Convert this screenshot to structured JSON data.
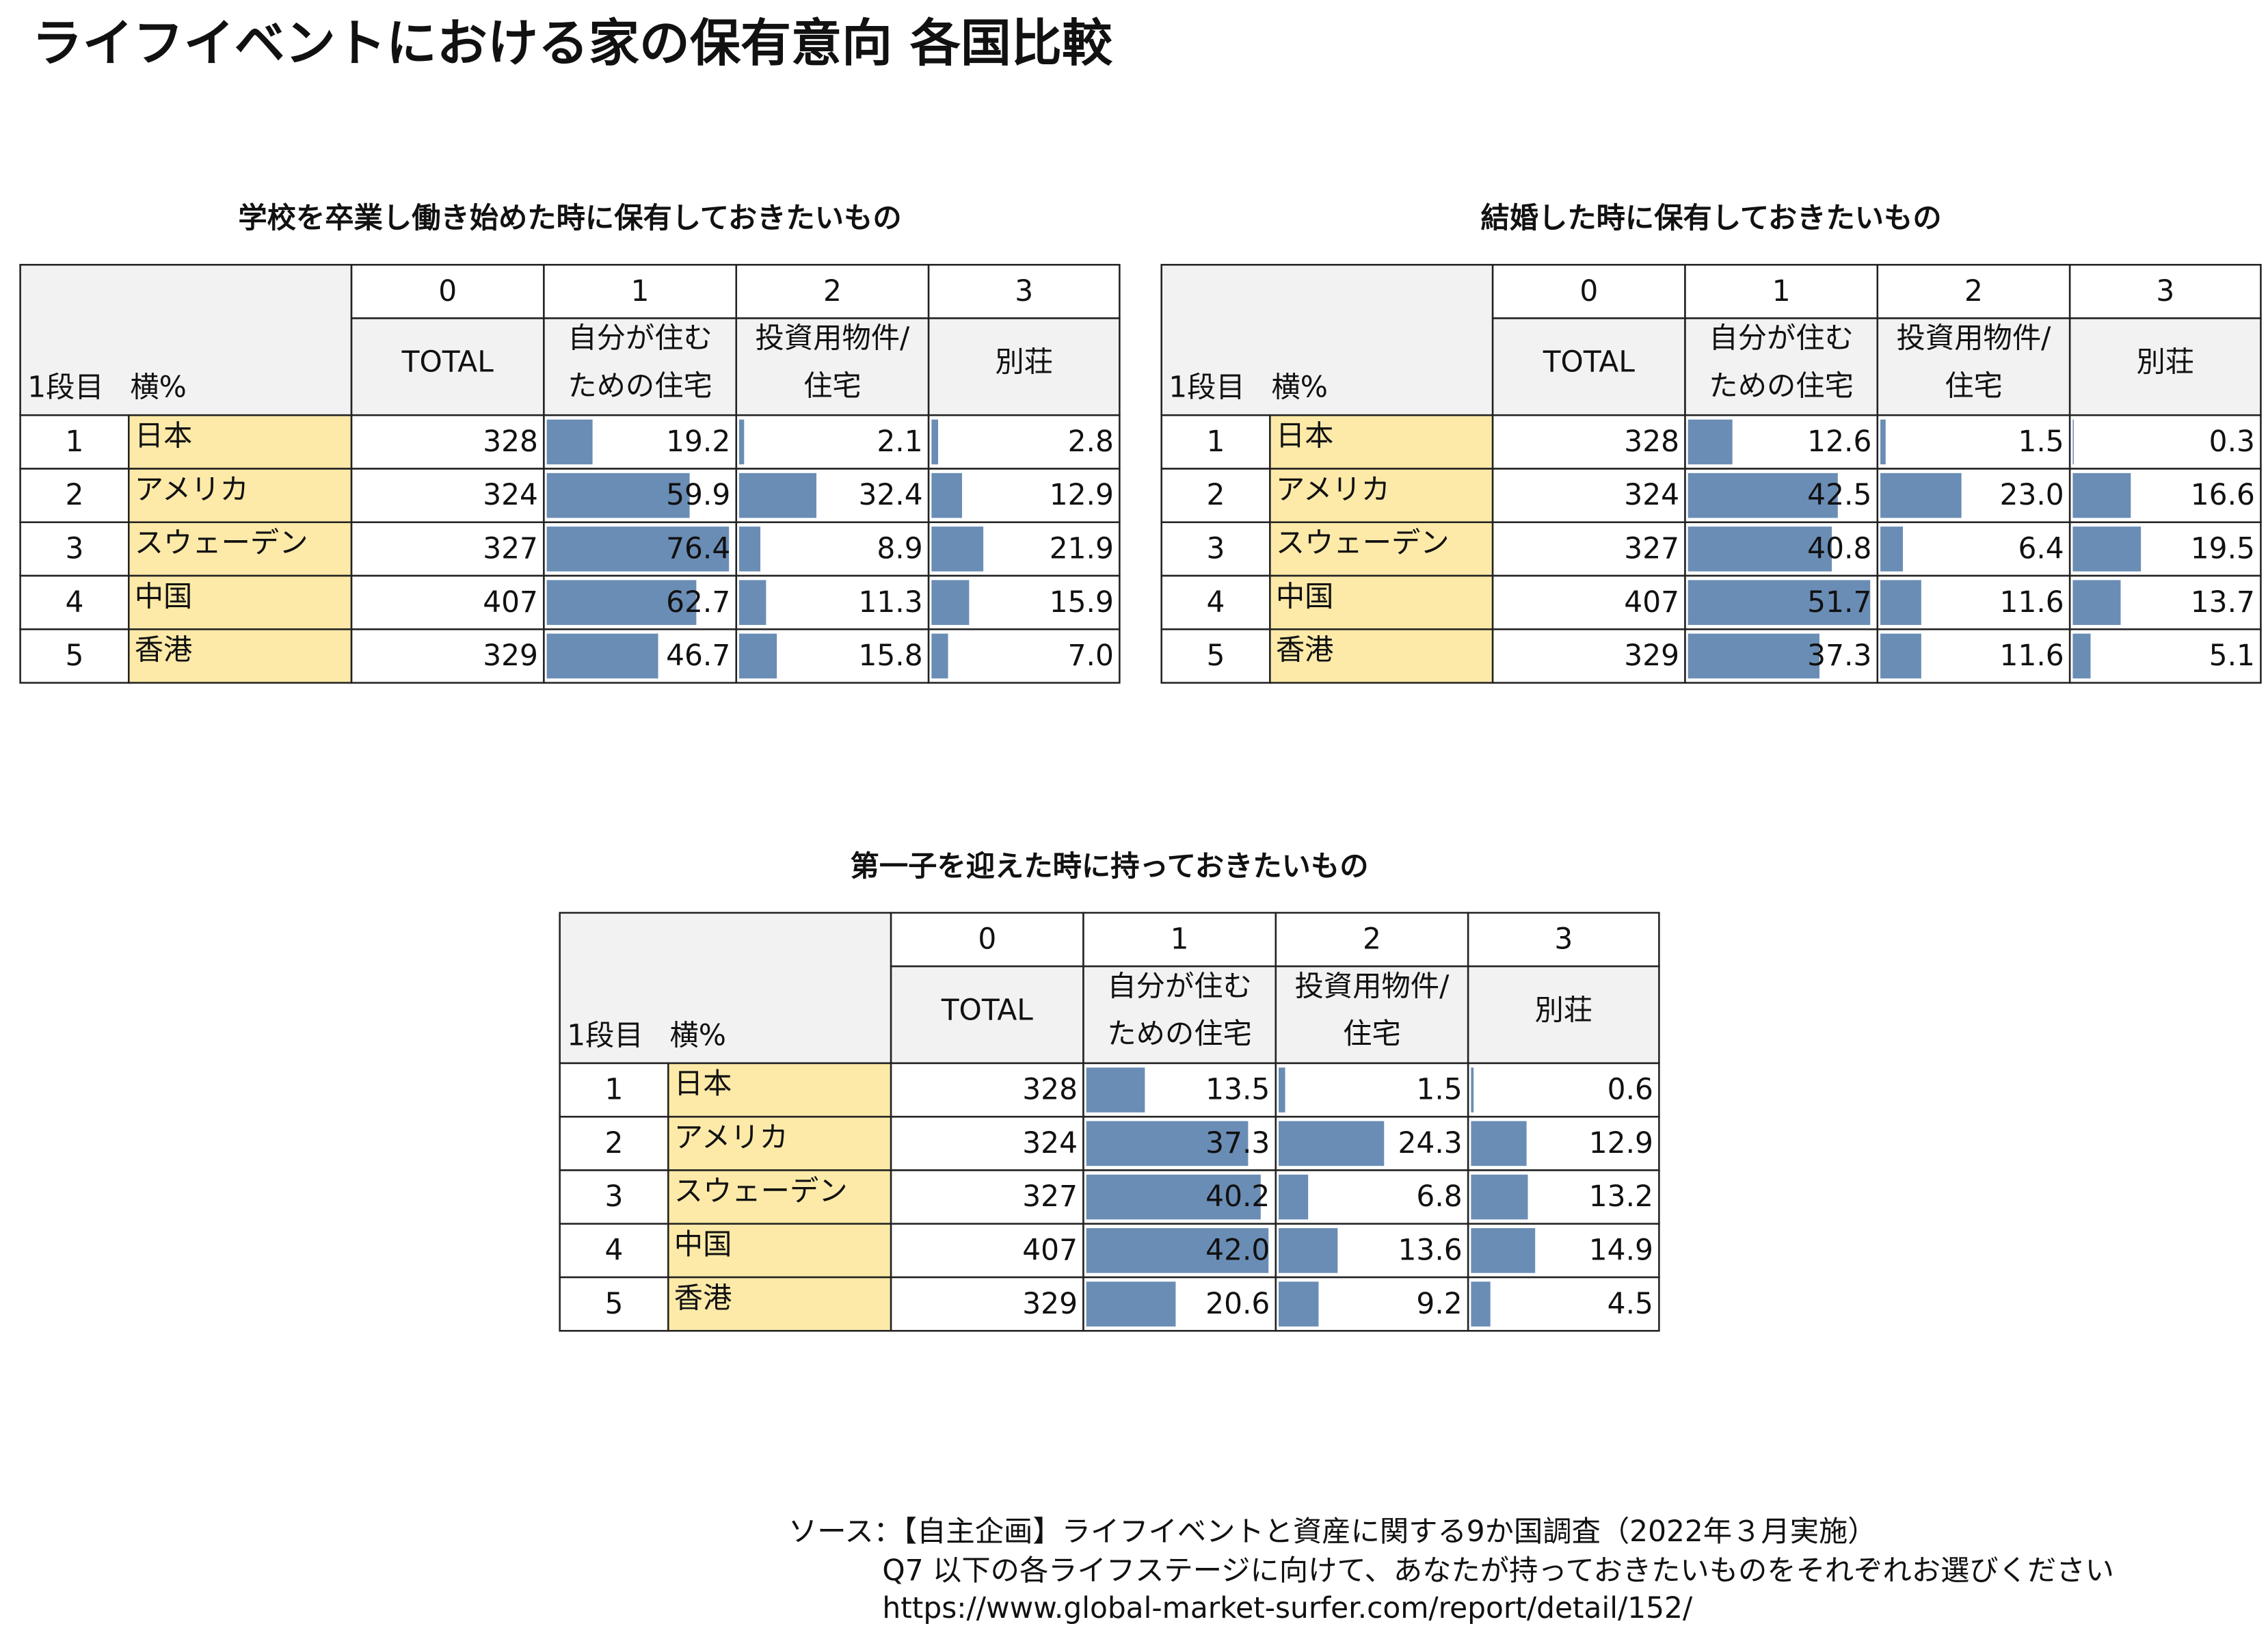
{
  "title": "ライフイベントにおける家の保有意向 各国比較",
  "tables": [
    {
      "title": "学校を卒業し働き始めた時に保有しておきたいもの",
      "corner": [
        "1段目",
        "横%"
      ],
      "column_numbers": [
        0,
        1,
        2,
        3
      ],
      "column_labels": [
        [
          "TOTAL"
        ],
        [
          "自分が住む",
          "ための住宅"
        ],
        [
          "投資用物件/",
          "住宅"
        ],
        [
          "別荘"
        ]
      ],
      "rows": [
        {
          "index": 1,
          "name": "日本",
          "total": 328,
          "values": [
            19.2,
            2.1,
            2.8
          ],
          "value_labels": [
            "19.2",
            "2.1",
            "2.8"
          ]
        },
        {
          "index": 2,
          "name": "アメリカ",
          "total": 324,
          "values": [
            59.9,
            32.4,
            12.9
          ],
          "value_labels": [
            "59.9",
            "32.4",
            "12.9"
          ]
        },
        {
          "index": 3,
          "name": "スウェーデン",
          "total": 327,
          "values": [
            76.4,
            8.9,
            21.9
          ],
          "value_labels": [
            "76.4",
            "8.9",
            "21.9"
          ]
        },
        {
          "index": 4,
          "name": "中国",
          "total": 407,
          "values": [
            62.7,
            11.3,
            15.9
          ],
          "value_labels": [
            "62.7",
            "11.3",
            "15.9"
          ]
        },
        {
          "index": 5,
          "name": "香港",
          "total": 329,
          "values": [
            46.7,
            15.8,
            7.0
          ],
          "value_labels": [
            "46.7",
            "15.8",
            "7.0"
          ]
        }
      ]
    },
    {
      "title": "結婚した時に保有しておきたいもの",
      "corner": [
        "1段目",
        "横%"
      ],
      "column_numbers": [
        0,
        1,
        2,
        3
      ],
      "column_labels": [
        [
          "TOTAL"
        ],
        [
          "自分が住む",
          "ための住宅"
        ],
        [
          "投資用物件/",
          "住宅"
        ],
        [
          "別荘"
        ]
      ],
      "rows": [
        {
          "index": 1,
          "name": "日本",
          "total": 328,
          "values": [
            12.6,
            1.5,
            0.3
          ],
          "value_labels": [
            "12.6",
            "1.5",
            "0.3"
          ]
        },
        {
          "index": 2,
          "name": "アメリカ",
          "total": 324,
          "values": [
            42.5,
            23.0,
            16.6
          ],
          "value_labels": [
            "42.5",
            "23.0",
            "16.6"
          ]
        },
        {
          "index": 3,
          "name": "スウェーデン",
          "total": 327,
          "values": [
            40.8,
            6.4,
            19.5
          ],
          "value_labels": [
            "40.8",
            "6.4",
            "19.5"
          ]
        },
        {
          "index": 4,
          "name": "中国",
          "total": 407,
          "values": [
            51.7,
            11.6,
            13.7
          ],
          "value_labels": [
            "51.7",
            "11.6",
            "13.7"
          ]
        },
        {
          "index": 5,
          "name": "香港",
          "total": 329,
          "values": [
            37.3,
            11.6,
            5.1
          ],
          "value_labels": [
            "37.3",
            "11.6",
            "5.1"
          ]
        }
      ]
    },
    {
      "title": "第一子を迎えた時に持っておきたいもの",
      "corner": [
        "1段目",
        "横%"
      ],
      "column_numbers": [
        0,
        1,
        2,
        3
      ],
      "column_labels": [
        [
          "TOTAL"
        ],
        [
          "自分が住む",
          "ための住宅"
        ],
        [
          "投資用物件/",
          "住宅"
        ],
        [
          "別荘"
        ]
      ],
      "rows": [
        {
          "index": 1,
          "name": "日本",
          "total": 328,
          "values": [
            13.5,
            1.5,
            0.6
          ],
          "value_labels": [
            "13.5",
            "1.5",
            "0.6"
          ]
        },
        {
          "index": 2,
          "name": "アメリカ",
          "total": 324,
          "values": [
            37.3,
            24.3,
            12.9
          ],
          "value_labels": [
            "37.3",
            "24.3",
            "12.9"
          ]
        },
        {
          "index": 3,
          "name": "スウェーデン",
          "total": 327,
          "values": [
            40.2,
            6.8,
            13.2
          ],
          "value_labels": [
            "40.2",
            "6.8",
            "13.2"
          ]
        },
        {
          "index": 4,
          "name": "中国",
          "total": 407,
          "values": [
            42.0,
            13.6,
            14.9
          ],
          "value_labels": [
            "42.0",
            "13.6",
            "14.9"
          ]
        },
        {
          "index": 5,
          "name": "香港",
          "total": 329,
          "values": [
            20.6,
            9.2,
            4.5
          ],
          "value_labels": [
            "20.6",
            "9.2",
            "4.5"
          ]
        }
      ]
    }
  ],
  "source": [
    "ソース：【自主企画】ライフイベントと資産に関する9か国調査（2022年３月実施）",
    "Q7 以下の各ライフステージに向けて、あなたが持っておきたいものをそれぞれお選びください",
    "https://www.global-market-surfer.com/report/detail/152/"
  ]
}
